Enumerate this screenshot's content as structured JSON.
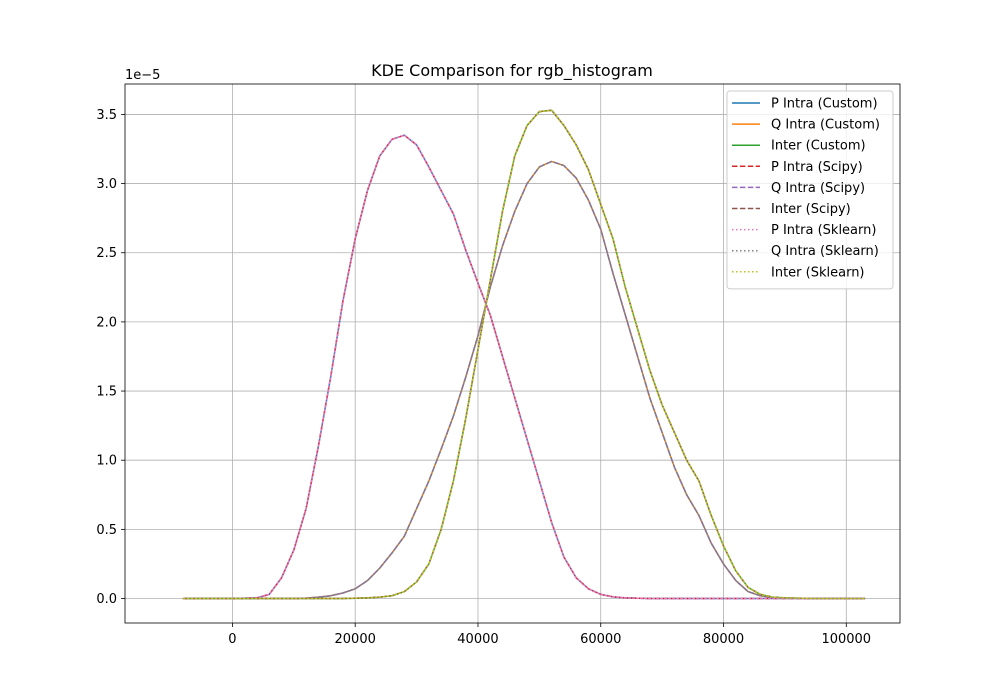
{
  "chart_data": {
    "type": "line",
    "title": "KDE Comparison for rgb_histogram",
    "xlabel": "",
    "ylabel": "",
    "y_offset_text": "1e−5",
    "xlim": [
      -17500,
      108750
    ],
    "ylim": [
      -0.177,
      3.72
    ],
    "x_ticks": [
      0,
      20000,
      40000,
      60000,
      80000,
      100000
    ],
    "x_tick_labels": [
      "0",
      "20000",
      "40000",
      "60000",
      "80000",
      "100000"
    ],
    "y_ticks": [
      0.0,
      0.5,
      1.0,
      1.5,
      2.0,
      2.5,
      3.0,
      3.5
    ],
    "y_tick_labels": [
      "0.0",
      "0.5",
      "1.0",
      "1.5",
      "2.0",
      "2.5",
      "3.0",
      "3.5"
    ],
    "grid": true,
    "legend_position": "top-right",
    "x": [
      -8000,
      0,
      4000,
      6000,
      8000,
      10000,
      12000,
      14000,
      16000,
      18000,
      20000,
      22000,
      24000,
      26000,
      28000,
      30000,
      32000,
      34000,
      36000,
      38000,
      40000,
      42000,
      44000,
      46000,
      48000,
      50000,
      52000,
      54000,
      56000,
      58000,
      60000,
      62000,
      64000,
      66000,
      68000,
      70000,
      72000,
      74000,
      76000,
      78000,
      80000,
      82000,
      84000,
      86000,
      88000,
      90000,
      95000,
      103000
    ],
    "series": [
      {
        "name": "P Intra (Custom)",
        "color": "#1f77b4",
        "dash": "solid",
        "values": [
          0,
          0,
          0.005,
          0.03,
          0.15,
          0.35,
          0.65,
          1.1,
          1.6,
          2.15,
          2.6,
          2.95,
          3.2,
          3.32,
          3.35,
          3.28,
          3.12,
          2.95,
          2.78,
          2.52,
          2.28,
          2.05,
          1.75,
          1.45,
          1.15,
          0.85,
          0.55,
          0.3,
          0.15,
          0.07,
          0.03,
          0.012,
          0.005,
          0.002,
          0,
          0,
          0,
          0,
          0,
          0,
          0,
          0,
          0,
          0,
          0,
          0,
          0,
          0
        ]
      },
      {
        "name": "Q Intra (Custom)",
        "color": "#ff7f0e",
        "dash": "solid",
        "values": [
          0,
          0,
          0,
          0,
          0,
          0,
          0.003,
          0.01,
          0.02,
          0.04,
          0.07,
          0.13,
          0.22,
          0.33,
          0.45,
          0.65,
          0.85,
          1.08,
          1.32,
          1.6,
          1.9,
          2.25,
          2.55,
          2.8,
          3.0,
          3.12,
          3.16,
          3.13,
          3.04,
          2.88,
          2.67,
          2.35,
          2.05,
          1.75,
          1.45,
          1.2,
          0.95,
          0.75,
          0.6,
          0.4,
          0.25,
          0.13,
          0.05,
          0.02,
          0.008,
          0.003,
          0,
          0
        ]
      },
      {
        "name": "Inter (Custom)",
        "color": "#2ca02c",
        "dash": "solid",
        "values": [
          0,
          0,
          0,
          0,
          0,
          0,
          0,
          0,
          0,
          0,
          0.002,
          0.005,
          0.01,
          0.02,
          0.05,
          0.12,
          0.25,
          0.5,
          0.85,
          1.3,
          1.8,
          2.3,
          2.8,
          3.2,
          3.42,
          3.52,
          3.53,
          3.42,
          3.28,
          3.1,
          2.85,
          2.6,
          2.25,
          1.95,
          1.65,
          1.4,
          1.2,
          1.0,
          0.85,
          0.6,
          0.38,
          0.2,
          0.08,
          0.03,
          0.01,
          0.005,
          0,
          0
        ]
      },
      {
        "name": "P Intra (Scipy)",
        "color": "#d62728",
        "dash": "dashed",
        "same_as": 0
      },
      {
        "name": "Q Intra (Scipy)",
        "color": "#9467bd",
        "dash": "dashed",
        "same_as": 1
      },
      {
        "name": "Inter (Scipy)",
        "color": "#8c564b",
        "dash": "dashed",
        "same_as": 2
      },
      {
        "name": "P Intra (Sklearn)",
        "color": "#e377c2",
        "dash": "dotted",
        "same_as": 0
      },
      {
        "name": "Q Intra (Sklearn)",
        "color": "#7f7f7f",
        "dash": "dotted",
        "same_as": 1
      },
      {
        "name": "Inter (Sklearn)",
        "color": "#bcbd22",
        "dash": "dotted",
        "same_as": 2
      }
    ]
  }
}
